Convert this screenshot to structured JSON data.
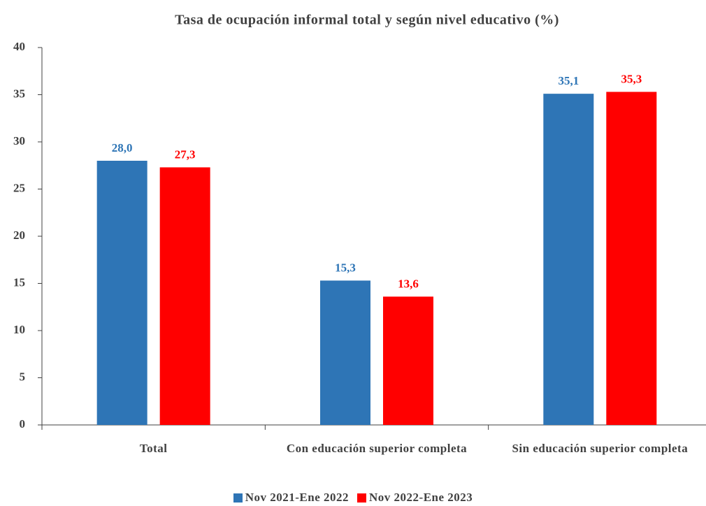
{
  "chart_data": {
    "type": "bar",
    "title": "Tasa de ocupación informal total y según nivel educativo (%)",
    "categories": [
      "Total",
      "Con educación superior completa",
      "Sin educación superior completa"
    ],
    "series": [
      {
        "name": "Nov 2021-Ene 2022",
        "color": "#2e75b6",
        "values": [
          28.0,
          15.3,
          35.1
        ],
        "value_labels": [
          "28,0",
          "15,3",
          "35,1"
        ]
      },
      {
        "name": "Nov 2022-Ene 2023",
        "color": "#ff0000",
        "values": [
          27.3,
          13.6,
          35.3
        ],
        "value_labels": [
          "27,3",
          "13,6",
          "35,3"
        ]
      }
    ],
    "ylim": [
      0,
      40
    ],
    "yticks": [
      0,
      5,
      10,
      15,
      20,
      25,
      30,
      35,
      40
    ],
    "grid": false,
    "legend": "bottom"
  }
}
